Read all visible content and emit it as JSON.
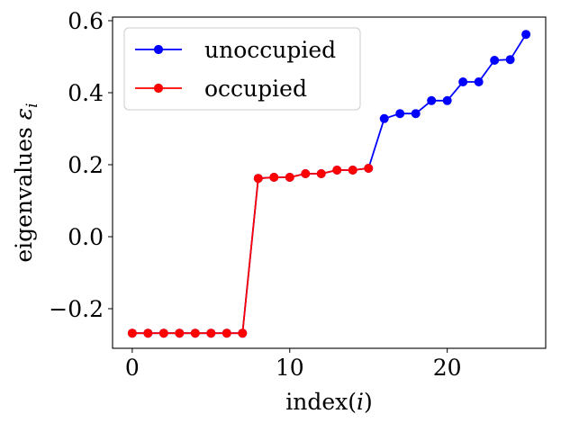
{
  "chart_data": {
    "type": "line",
    "title": "",
    "xlabel": "index(i)",
    "ylabel": "eigenvalues ε_i",
    "xlim": [
      -1.25,
      26.25
    ],
    "ylim": [
      -0.31,
      0.61
    ],
    "xticks": [
      0,
      10,
      20
    ],
    "yticks": [
      -0.2,
      0.0,
      0.2,
      0.4,
      0.6
    ],
    "xtick_labels": [
      "0",
      "10",
      "20"
    ],
    "ytick_labels": [
      "−0.2",
      "0.0",
      "0.2",
      "0.4",
      "0.6"
    ],
    "grid": false,
    "legend_position": "upper-left",
    "series": [
      {
        "name": "unoccupied",
        "color": "#0000ff",
        "marker": "circle",
        "x": [
          0,
          1,
          2,
          3,
          4,
          5,
          6,
          7,
          8,
          9,
          10,
          11,
          12,
          13,
          14,
          15,
          16,
          17,
          18,
          19,
          20,
          21,
          22,
          23,
          24,
          25
        ],
        "y": [
          -0.268,
          -0.268,
          -0.268,
          -0.268,
          -0.268,
          -0.268,
          -0.268,
          -0.268,
          0.162,
          0.165,
          0.165,
          0.175,
          0.175,
          0.185,
          0.185,
          0.19,
          0.328,
          0.342,
          0.342,
          0.378,
          0.378,
          0.43,
          0.43,
          0.49,
          0.492,
          0.562
        ]
      },
      {
        "name": "occupied",
        "color": "#ff0000",
        "marker": "circle",
        "x": [
          0,
          1,
          2,
          3,
          4,
          5,
          6,
          7,
          8,
          9,
          10,
          11,
          12,
          13,
          14,
          15
        ],
        "y": [
          -0.268,
          -0.268,
          -0.268,
          -0.268,
          -0.268,
          -0.268,
          -0.268,
          -0.268,
          0.162,
          0.165,
          0.165,
          0.175,
          0.175,
          0.185,
          0.185,
          0.19
        ]
      }
    ]
  }
}
